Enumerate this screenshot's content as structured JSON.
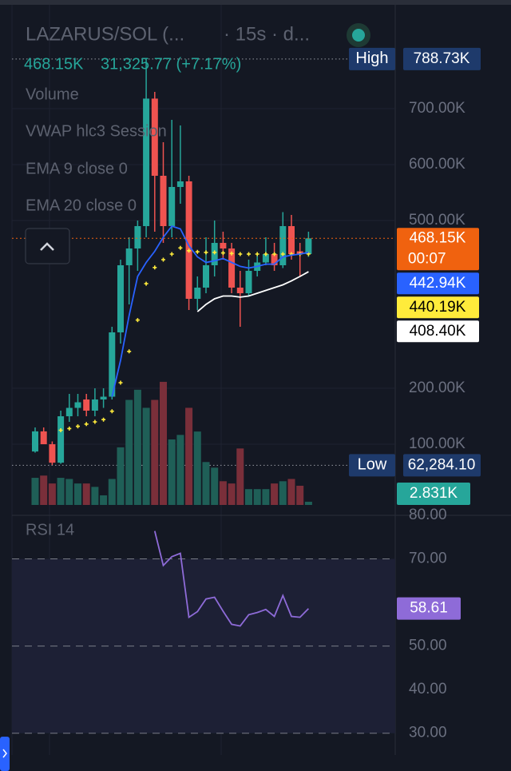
{
  "chart_data": [
    {
      "type": "candlestick",
      "title": "LAZARUS/SOL (...",
      "subtitle": "· 15s · d...",
      "header_values": [
        "468.15K",
        "31,325.77 (+7.17%)"
      ],
      "open": [
        87,
        123,
        100,
        67,
        150,
        165,
        180,
        160,
        180,
        185,
        300,
        420,
        450,
        490,
        718,
        580,
        490,
        560,
        570,
        360,
        380,
        420,
        460,
        450,
        380,
        370,
        410,
        425,
        440,
        420,
        490,
        445,
        440
      ],
      "high": [
        130,
        130,
        105,
        160,
        190,
        190,
        190,
        200,
        200,
        310,
        430,
        470,
        500,
        788.73,
        730,
        640,
        680,
        670,
        580,
        400,
        470,
        500,
        480,
        460,
        410,
        430,
        440,
        470,
        460,
        515,
        510,
        460,
        480
      ],
      "low": [
        85,
        100,
        62.2841,
        65,
        140,
        150,
        150,
        150,
        165,
        180,
        280,
        350,
        410,
        470,
        480,
        460,
        470,
        530,
        340,
        340,
        370,
        400,
        430,
        370,
        310,
        365,
        400,
        420,
        410,
        415,
        430,
        400,
        435
      ],
      "close": [
        123,
        100,
        67,
        150,
        165,
        175,
        160,
        180,
        185,
        300,
        420,
        450,
        490,
        718,
        580,
        490,
        560,
        570,
        360,
        380,
        420,
        460,
        450,
        380,
        370,
        410,
        425,
        440,
        420,
        490,
        440,
        440,
        468.15
      ],
      "up_color": "#26a69a",
      "down_color": "#ef5350",
      "ylim": [
        0,
        894.3
      ],
      "yticks": [
        {
          "value": 100,
          "label": "100.00K"
        },
        {
          "value": 200,
          "label": "200.00K"
        },
        {
          "value": 500,
          "label": "500.00K"
        },
        {
          "value": 600,
          "label": "600.00K"
        },
        {
          "value": 700,
          "label": "700.00K"
        }
      ],
      "grid": true,
      "series": [
        {
          "name": "VWAP hlc3 Session",
          "color": "#ffeb3b",
          "style": "dots",
          "values": [
            null,
            null,
            null,
            125,
            128,
            132,
            136,
            140,
            144,
            159,
            210,
            266,
            322,
            387,
            416,
            430,
            440,
            451,
            446,
            444,
            443,
            443,
            442,
            441,
            440,
            440,
            440,
            440,
            440,
            440,
            440,
            440,
            440.19
          ],
          "value_labels": [
            null,
            null,
            null,
            null,
            null,
            null,
            null,
            null,
            null,
            null,
            null,
            null,
            null,
            null,
            null,
            null,
            null,
            null,
            null,
            null,
            null,
            null,
            null,
            null,
            null,
            null,
            null,
            null,
            null,
            null,
            null,
            null,
            "440.19K"
          ]
        },
        {
          "name": "EMA 9 close 0",
          "color": "#2962ff",
          "style": "line",
          "values": [
            null,
            null,
            null,
            null,
            null,
            null,
            null,
            null,
            null,
            185,
            250,
            330,
            400,
            425,
            445,
            470,
            490,
            485,
            455,
            435,
            425,
            428,
            432,
            425,
            418,
            415,
            418,
            422,
            422,
            435,
            438,
            440,
            442.94
          ],
          "value_labels": [
            null,
            null,
            null,
            null,
            null,
            null,
            null,
            null,
            null,
            null,
            null,
            null,
            null,
            null,
            null,
            null,
            null,
            null,
            null,
            null,
            null,
            null,
            null,
            null,
            null,
            null,
            null,
            null,
            null,
            null,
            null,
            null,
            "442.94K"
          ]
        },
        {
          "name": "EMA 20 close 0",
          "color": "#ffffff",
          "style": "line",
          "values": [
            null,
            null,
            null,
            null,
            null,
            null,
            null,
            null,
            null,
            null,
            null,
            null,
            null,
            null,
            null,
            null,
            null,
            null,
            null,
            337,
            350,
            360,
            365,
            365,
            363,
            365,
            370,
            375,
            380,
            385,
            392,
            400,
            408.4
          ],
          "value_labels": [
            null,
            null,
            null,
            null,
            null,
            null,
            null,
            null,
            null,
            null,
            null,
            null,
            null,
            null,
            null,
            null,
            null,
            null,
            null,
            null,
            null,
            null,
            null,
            null,
            null,
            null,
            null,
            null,
            null,
            null,
            null,
            null,
            "408.40K"
          ]
        }
      ],
      "markers": [
        {
          "name": "High",
          "value": 788.73,
          "label": "788.73K",
          "color": "#1e3a6b"
        },
        {
          "name": "Low",
          "value": 62.2841,
          "label": "62,284.10",
          "color": "#1e3a6b"
        }
      ],
      "last_price": {
        "value": 468.15,
        "label": "468.15K",
        "countdown": "00:07",
        "color": "#f0620f"
      }
    },
    {
      "type": "bar",
      "title": "Volume",
      "values": [
        24,
        26,
        19,
        24,
        23,
        19,
        19,
        16,
        8.5,
        23,
        51,
        93,
        102,
        86,
        93,
        109,
        58,
        62,
        86,
        65,
        38,
        33,
        21,
        19,
        50,
        14,
        14,
        14,
        19,
        21,
        23,
        17,
        2.831
      ],
      "value_labels": [
        null,
        null,
        null,
        null,
        null,
        null,
        null,
        null,
        null,
        null,
        null,
        null,
        null,
        null,
        null,
        null,
        null,
        null,
        null,
        null,
        null,
        null,
        null,
        null,
        null,
        null,
        null,
        null,
        null,
        null,
        null,
        null,
        "2.831K"
      ],
      "up_color": "#1f5f57",
      "down_color": "#7a2f3a",
      "label_color": "#26a69a",
      "ylim": [
        0,
        110
      ]
    },
    {
      "type": "line",
      "title": "RSI 14",
      "values": [
        null,
        null,
        null,
        null,
        null,
        null,
        null,
        null,
        null,
        null,
        null,
        null,
        null,
        null,
        76.4,
        68.5,
        70.5,
        71.3,
        56.6,
        57.9,
        60.8,
        61.2,
        58,
        55,
        54.6,
        57.2,
        57.7,
        58.4,
        56.8,
        61.6,
        56.8,
        56.6,
        58.61
      ],
      "value_labels": [
        null,
        null,
        null,
        null,
        null,
        null,
        null,
        null,
        null,
        null,
        null,
        null,
        null,
        null,
        null,
        null,
        null,
        null,
        null,
        null,
        null,
        null,
        null,
        null,
        null,
        null,
        null,
        null,
        null,
        null,
        null,
        null,
        "58.61"
      ],
      "color": "#8e6bd8",
      "ylim": [
        25,
        80
      ],
      "yticks": [
        {
          "value": 80,
          "label": "80.00"
        },
        {
          "value": 70,
          "label": "70.00"
        },
        {
          "value": 50,
          "label": "50.00"
        },
        {
          "value": 40,
          "label": "40.00"
        },
        {
          "value": 30,
          "label": "30.00"
        }
      ],
      "levels": [
        70,
        50,
        30
      ]
    }
  ]
}
